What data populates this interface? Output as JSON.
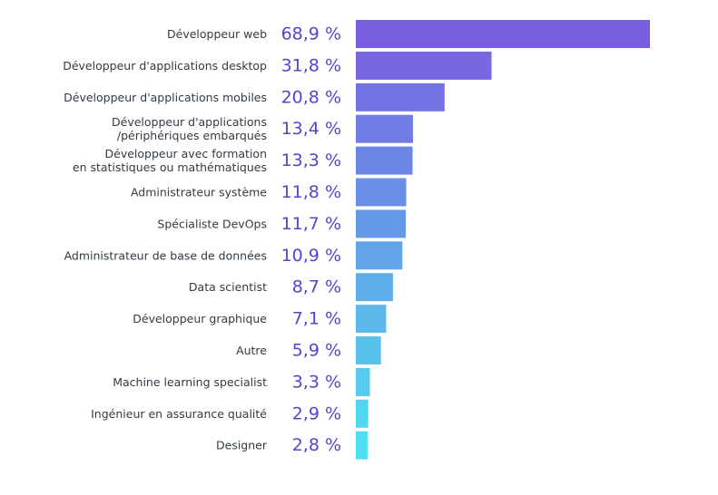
{
  "chart_data": {
    "type": "bar",
    "orientation": "horizontal",
    "categories": [
      [
        "Développeur web"
      ],
      [
        "Développeur d'applications desktop"
      ],
      [
        "Développeur d'applications mobiles"
      ],
      [
        "Développeur d'applications",
        "/périphériques embarqués"
      ],
      [
        "Développeur avec formation",
        "en statistiques ou mathématiques"
      ],
      [
        "Administrateur système"
      ],
      [
        "Spécialiste DevOps"
      ],
      [
        "Administrateur de base de données"
      ],
      [
        "Data scientist"
      ],
      [
        "Développeur graphique"
      ],
      [
        "Autre"
      ],
      [
        "Machine learning specialist"
      ],
      [
        "Ingénieur en assurance qualité"
      ],
      [
        "Designer"
      ]
    ],
    "values": [
      68.9,
      31.8,
      20.8,
      13.4,
      13.3,
      11.8,
      11.7,
      10.9,
      8.7,
      7.1,
      5.9,
      3.3,
      2.9,
      2.8
    ],
    "value_labels": [
      "68,9 %",
      "31,8 %",
      "20,8 %",
      "13,4 %",
      "13,3 %",
      "11,8 %",
      "11,7 %",
      "10,9 %",
      "8,7 %",
      "7,1 %",
      "5,9 %",
      "3,3 %",
      "2,9 %",
      "2,8 %"
    ],
    "unit": "%",
    "xlim": [
      0,
      68.9
    ],
    "grid": false,
    "legend": "none",
    "colors": {
      "gradient_top": "#7a5ee0",
      "gradient_bottom": "#4ee0f0",
      "value_text": "#5b43c9",
      "label_text": "#333a45"
    }
  }
}
